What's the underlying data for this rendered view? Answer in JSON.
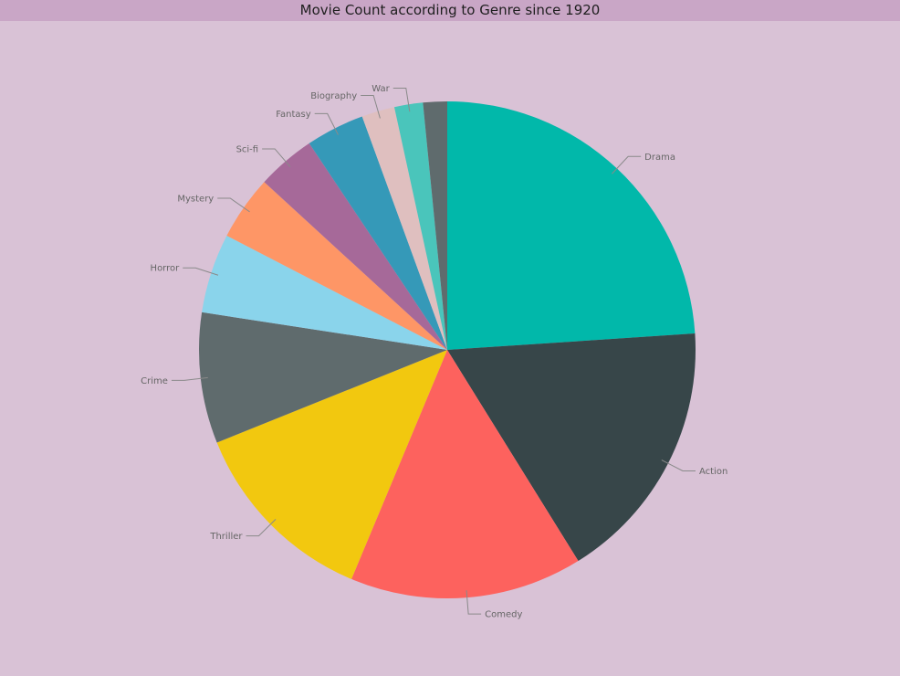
{
  "chart_data": {
    "type": "pie",
    "title": "Movie Count according to Genre since 1920",
    "categories": [
      "Drama",
      "Action",
      "Comedy",
      "Thriller",
      "Crime",
      "Horror",
      "Mystery",
      "Sci-fi",
      "Fantasy",
      "Biography",
      "War",
      ""
    ],
    "values": [
      24.5,
      17.6,
      15.5,
      12.9,
      8.7,
      5.3,
      4.3,
      3.9,
      3.9,
      2.2,
      1.9,
      1.6
    ],
    "colors": [
      "#01b8aa",
      "#374649",
      "#fd625e",
      "#f2c80f",
      "#5f6b6d",
      "#8ad4eb",
      "#fe9666",
      "#a66999",
      "#3599b8",
      "#dfbfbf",
      "#4ac5bb",
      "#5f6b6d"
    ],
    "start_angle": "top",
    "direction": "clockwise",
    "legend": "none"
  }
}
